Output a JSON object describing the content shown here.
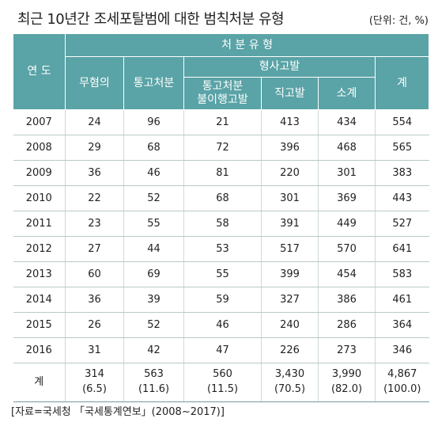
{
  "title": "최근 10년간 조세포탈범에 대한 범칙처분 유형",
  "unit": "(단위: 건, %)",
  "header": {
    "year": "연 도",
    "disposition": "처 분 유 형",
    "no_charge": "무혐의",
    "notice": "통고처분",
    "criminal": "형사고발",
    "non_compliance": "통고처분\n불이행고발",
    "direct": "직고발",
    "subtotal": "소계",
    "total": "계"
  },
  "rows": [
    {
      "year": "2007",
      "no_charge": "24",
      "notice": "96",
      "non_compliance": "21",
      "direct": "413",
      "subtotal": "434",
      "total": "554"
    },
    {
      "year": "2008",
      "no_charge": "29",
      "notice": "68",
      "non_compliance": "72",
      "direct": "396",
      "subtotal": "468",
      "total": "565"
    },
    {
      "year": "2009",
      "no_charge": "36",
      "notice": "46",
      "non_compliance": "81",
      "direct": "220",
      "subtotal": "301",
      "total": "383"
    },
    {
      "year": "2010",
      "no_charge": "22",
      "notice": "52",
      "non_compliance": "68",
      "direct": "301",
      "subtotal": "369",
      "total": "443"
    },
    {
      "year": "2011",
      "no_charge": "23",
      "notice": "55",
      "non_compliance": "58",
      "direct": "391",
      "subtotal": "449",
      "total": "527"
    },
    {
      "year": "2012",
      "no_charge": "27",
      "notice": "44",
      "non_compliance": "53",
      "direct": "517",
      "subtotal": "570",
      "total": "641"
    },
    {
      "year": "2013",
      "no_charge": "60",
      "notice": "69",
      "non_compliance": "55",
      "direct": "399",
      "subtotal": "454",
      "total": "583"
    },
    {
      "year": "2014",
      "no_charge": "36",
      "notice": "39",
      "non_compliance": "59",
      "direct": "327",
      "subtotal": "386",
      "total": "461"
    },
    {
      "year": "2015",
      "no_charge": "26",
      "notice": "52",
      "non_compliance": "46",
      "direct": "240",
      "subtotal": "286",
      "total": "364"
    },
    {
      "year": "2016",
      "no_charge": "31",
      "notice": "42",
      "non_compliance": "47",
      "direct": "226",
      "subtotal": "273",
      "total": "346"
    }
  ],
  "totals": {
    "label": "계",
    "no_charge": "314\n(6.5)",
    "notice": "563\n(11.6)",
    "non_compliance": "560\n(11.5)",
    "direct": "3,430\n(70.5)",
    "subtotal": "3,990\n(82.0)",
    "total": "4,867\n(100.0)"
  },
  "source": "[자료=국세청 「국세통계연보」(2008~2017)]",
  "colors": {
    "header_bg": "#5aa3a6",
    "header_text": "#ffffff",
    "row_rule": "#b9c9c9"
  }
}
